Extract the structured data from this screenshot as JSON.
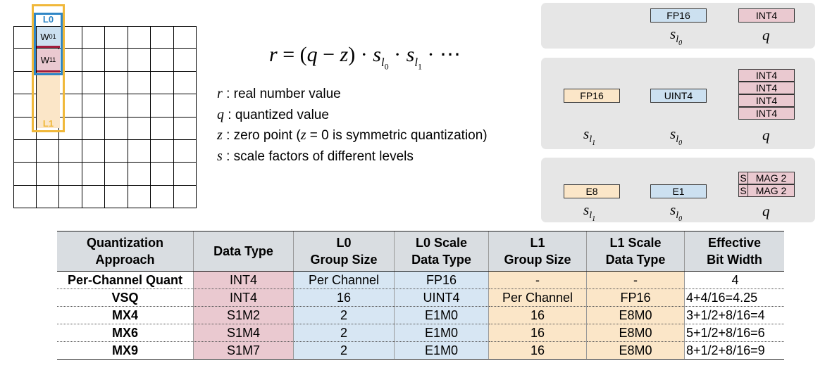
{
  "grid": {
    "rows": 8,
    "cols": 8,
    "w01_label": "W",
    "w01_sub": "01",
    "w11_label": "W",
    "w11_sub": "11",
    "l0_label": "L0",
    "l1_label": "L1"
  },
  "formula": {
    "lhs": "r",
    "eq": " = (",
    "q": "q",
    "minus": " − ",
    "z": "z",
    "mid": ") · ",
    "s": "s",
    "tail": " · ⋯",
    "dot": " · "
  },
  "legend": [
    {
      "var": "r",
      "text": " : real number value"
    },
    {
      "var": "q",
      "text": " : quantized value"
    },
    {
      "var": "z",
      "text": " : zero point (",
      "extra_var": "z",
      "extra": " = 0",
      "text2": " is symmetric quantization)"
    },
    {
      "var": "s",
      "text": " : scale factors of different levels"
    }
  ],
  "panels": {
    "p1": {
      "tag_s0": "FP16",
      "tag_q": "INT4",
      "q_sym": "q",
      "s_sym": "s",
      "s0_sub": "l",
      "s0_subsub": "0"
    },
    "p2": {
      "tag_s1": "FP16",
      "tag_s0": "UINT4",
      "q_tags": [
        "INT4",
        "INT4",
        "INT4",
        "INT4"
      ],
      "q_sym": "q"
    },
    "p3": {
      "tag_s1": "E8",
      "tag_s0": "E1",
      "q_tags": [
        {
          "s": "S",
          "m": "MAG 2"
        },
        {
          "s": "S",
          "m": "MAG 2"
        }
      ],
      "q_sym": "q"
    }
  },
  "table": {
    "headers": [
      [
        "Quantization",
        "Approach"
      ],
      [
        "Data Type"
      ],
      [
        "L0",
        "Group Size"
      ],
      [
        "L0 Scale",
        "Data Type"
      ],
      [
        "L1",
        "Group Size"
      ],
      [
        "L1 Scale",
        "Data Type"
      ],
      [
        "Effective",
        "Bit Width"
      ]
    ],
    "rows": [
      [
        "Per-Channel Quant",
        "INT4",
        "Per Channel",
        "FP16",
        "-",
        "-",
        "4"
      ],
      [
        "VSQ",
        "INT4",
        "16",
        "UINT4",
        "Per Channel",
        "FP16",
        "4+4/16=4.25"
      ],
      [
        "MX4",
        "S1M2",
        "2",
        "E1M0",
        "16",
        "E8M0",
        "3+1/2+8/16=4"
      ],
      [
        "MX6",
        "S1M4",
        "2",
        "E1M0",
        "16",
        "E8M0",
        "5+1/2+8/16=6"
      ],
      [
        "MX9",
        "S1M7",
        "2",
        "E1M0",
        "16",
        "E8M0",
        "8+1/2+8/16=9"
      ]
    ]
  },
  "colors": {
    "pink": "#eac9d0",
    "blue": "#cce0f0",
    "beige": "#fbe6c8",
    "l0_outline": "#2f86c6",
    "l1_outline": "#f0b83a",
    "w_bar": "#a01c3c"
  }
}
